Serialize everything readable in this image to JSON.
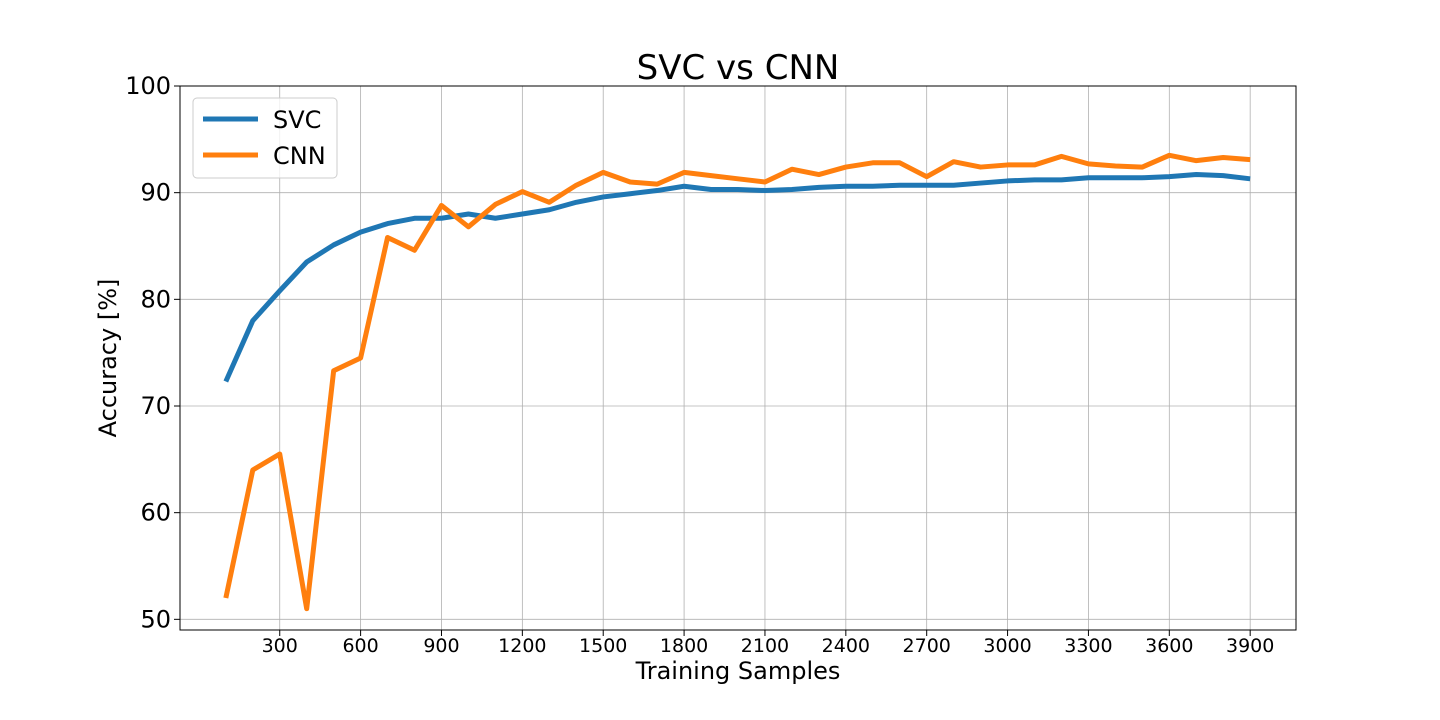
{
  "chart_data": {
    "type": "line",
    "title": "SVC vs CNN",
    "xlabel": "Training Samples",
    "ylabel": "Accuracy [%]",
    "xlim": [
      -70,
      4070
    ],
    "ylim": [
      49,
      100
    ],
    "xticks": [
      300,
      600,
      900,
      1200,
      1500,
      1800,
      2100,
      2400,
      2700,
      3000,
      3300,
      3600,
      3900
    ],
    "yticks": [
      50,
      60,
      70,
      80,
      90,
      100
    ],
    "grid": true,
    "legend_position": "top-left",
    "x": [
      100,
      200,
      300,
      400,
      500,
      600,
      700,
      800,
      900,
      1000,
      1100,
      1200,
      1300,
      1400,
      1500,
      1600,
      1700,
      1800,
      1900,
      2000,
      2100,
      2200,
      2300,
      2400,
      2500,
      2600,
      2700,
      2800,
      2900,
      3000,
      3100,
      3200,
      3300,
      3400,
      3500,
      3600,
      3700,
      3800,
      3900
    ],
    "series": [
      {
        "name": "SVC",
        "color": "#1f77b4",
        "values": [
          72.3,
          78.0,
          80.8,
          83.5,
          85.1,
          86.3,
          87.1,
          87.6,
          87.6,
          88.0,
          87.6,
          88.0,
          88.4,
          89.1,
          89.6,
          89.9,
          90.2,
          90.6,
          90.3,
          90.3,
          90.2,
          90.3,
          90.5,
          90.6,
          90.6,
          90.7,
          90.7,
          90.7,
          90.9,
          91.1,
          91.2,
          91.2,
          91.4,
          91.4,
          91.4,
          91.5,
          91.7,
          91.6,
          91.3
        ]
      },
      {
        "name": "CNN",
        "color": "#ff7f0e",
        "values": [
          52.0,
          64.0,
          65.5,
          51.0,
          73.3,
          74.5,
          85.8,
          84.6,
          88.8,
          86.8,
          88.9,
          90.1,
          89.1,
          90.7,
          91.9,
          91.0,
          90.8,
          91.9,
          91.6,
          91.3,
          91.0,
          92.2,
          91.7,
          92.4,
          92.8,
          92.8,
          91.5,
          92.9,
          92.4,
          92.6,
          92.6,
          93.4,
          92.7,
          92.5,
          92.4,
          93.5,
          93.0,
          93.3,
          93.1
        ]
      }
    ]
  }
}
